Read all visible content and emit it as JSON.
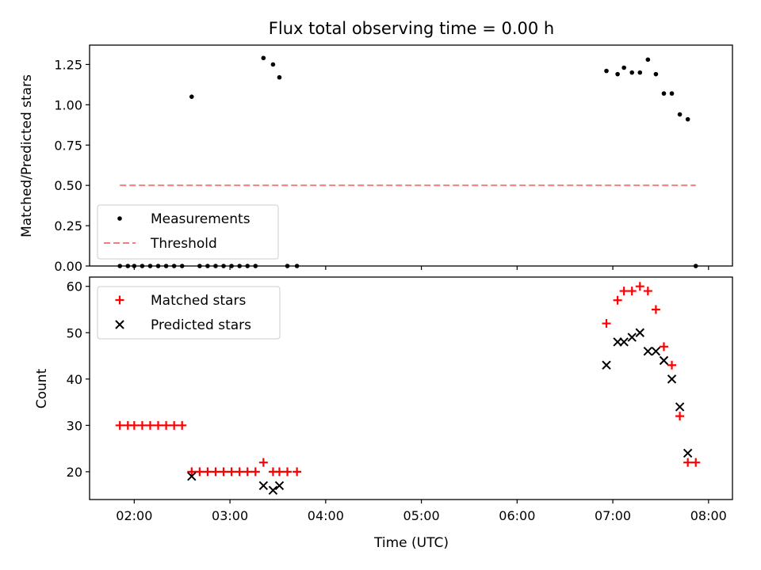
{
  "figure": {
    "title": "Flux total observing time = 0.00 h"
  },
  "chart_data": [
    {
      "type": "scatter",
      "ylabel": "Matched/Predicted stars",
      "xlabel": "",
      "xlim": [
        "01:32",
        "08:15"
      ],
      "ylim": [
        0,
        1.37
      ],
      "yticks": [
        0.0,
        0.25,
        0.5,
        0.75,
        1.0,
        1.25
      ],
      "ytick_labels": [
        "0.00",
        "0.25",
        "0.50",
        "0.75",
        "1.00",
        "1.25"
      ],
      "legend_position": "lower-left",
      "series": [
        {
          "name": "Measurements",
          "style": "dot",
          "color": "#000000",
          "points": [
            [
              "01:51",
              0
            ],
            [
              "01:56",
              0
            ],
            [
              "02:00",
              0
            ],
            [
              "02:05",
              0
            ],
            [
              "02:10",
              0
            ],
            [
              "02:15",
              0
            ],
            [
              "02:20",
              0
            ],
            [
              "02:25",
              0
            ],
            [
              "02:30",
              0
            ],
            [
              "02:36",
              1.05
            ],
            [
              "02:41",
              0
            ],
            [
              "02:46",
              0
            ],
            [
              "02:51",
              0
            ],
            [
              "02:56",
              0
            ],
            [
              "03:01",
              0
            ],
            [
              "03:06",
              0
            ],
            [
              "03:11",
              0
            ],
            [
              "03:16",
              0
            ],
            [
              "03:21",
              1.29
            ],
            [
              "03:27",
              1.25
            ],
            [
              "03:31",
              1.17
            ],
            [
              "03:36",
              0
            ],
            [
              "03:42",
              0
            ],
            [
              "06:56",
              1.21
            ],
            [
              "07:03",
              1.19
            ],
            [
              "07:07",
              1.23
            ],
            [
              "07:12",
              1.2
            ],
            [
              "07:17",
              1.2
            ],
            [
              "07:22",
              1.28
            ],
            [
              "07:27",
              1.19
            ],
            [
              "07:32",
              1.07
            ],
            [
              "07:37",
              1.07
            ],
            [
              "07:42",
              0.94
            ],
            [
              "07:47",
              0.91
            ],
            [
              "07:52",
              0
            ]
          ]
        },
        {
          "name": "Threshold",
          "style": "dashed-line",
          "color": "#f08080",
          "points": [
            [
              "01:51",
              0.5
            ],
            [
              "07:52",
              0.5
            ]
          ]
        }
      ]
    },
    {
      "type": "scatter",
      "ylabel": "Count",
      "xlabel": "Time (UTC)",
      "xlim": [
        "01:32",
        "08:15"
      ],
      "ylim": [
        14,
        62
      ],
      "yticks": [
        20,
        30,
        40,
        50,
        60
      ],
      "ytick_labels": [
        "20",
        "30",
        "40",
        "50",
        "60"
      ],
      "xticks": [
        "02:00",
        "03:00",
        "04:00",
        "05:00",
        "06:00",
        "07:00",
        "08:00"
      ],
      "xtick_labels": [
        "02:00",
        "03:00",
        "04:00",
        "05:00",
        "06:00",
        "07:00",
        "08:00"
      ],
      "legend_position": "upper-left",
      "series": [
        {
          "name": "Matched stars",
          "style": "plus",
          "color": "#ff0000",
          "points": [
            [
              "01:51",
              30
            ],
            [
              "01:56",
              30
            ],
            [
              "02:00",
              30
            ],
            [
              "02:05",
              30
            ],
            [
              "02:10",
              30
            ],
            [
              "02:15",
              30
            ],
            [
              "02:20",
              30
            ],
            [
              "02:25",
              30
            ],
            [
              "02:30",
              30
            ],
            [
              "02:36",
              20
            ],
            [
              "02:41",
              20
            ],
            [
              "02:46",
              20
            ],
            [
              "02:51",
              20
            ],
            [
              "02:56",
              20
            ],
            [
              "03:01",
              20
            ],
            [
              "03:06",
              20
            ],
            [
              "03:11",
              20
            ],
            [
              "03:16",
              20
            ],
            [
              "03:21",
              22
            ],
            [
              "03:27",
              20
            ],
            [
              "03:31",
              20
            ],
            [
              "03:36",
              20
            ],
            [
              "03:42",
              20
            ],
            [
              "06:56",
              52
            ],
            [
              "07:03",
              57
            ],
            [
              "07:07",
              59
            ],
            [
              "07:12",
              59
            ],
            [
              "07:17",
              60
            ],
            [
              "07:22",
              59
            ],
            [
              "07:27",
              55
            ],
            [
              "07:32",
              47
            ],
            [
              "07:37",
              43
            ],
            [
              "07:42",
              32
            ],
            [
              "07:47",
              22
            ],
            [
              "07:52",
              22
            ]
          ]
        },
        {
          "name": "Predicted stars",
          "style": "cross",
          "color": "#000000",
          "points": [
            [
              "02:36",
              19
            ],
            [
              "03:21",
              17
            ],
            [
              "03:27",
              16
            ],
            [
              "03:31",
              17
            ],
            [
              "06:56",
              43
            ],
            [
              "07:03",
              48
            ],
            [
              "07:07",
              48
            ],
            [
              "07:12",
              49
            ],
            [
              "07:17",
              50
            ],
            [
              "07:22",
              46
            ],
            [
              "07:27",
              46
            ],
            [
              "07:32",
              44
            ],
            [
              "07:37",
              40
            ],
            [
              "07:42",
              34
            ],
            [
              "07:47",
              24
            ]
          ]
        }
      ]
    }
  ]
}
